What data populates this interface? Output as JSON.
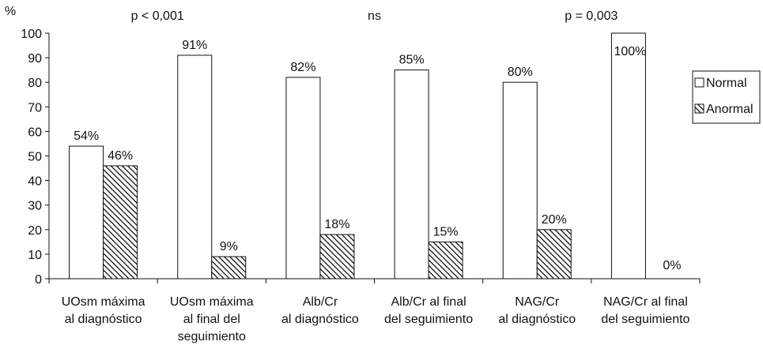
{
  "chart_data": {
    "type": "bar",
    "title": "",
    "xlabel": "",
    "ylabel": "%",
    "ylim": [
      0,
      100
    ],
    "yticks": [
      0,
      10,
      20,
      30,
      40,
      50,
      60,
      70,
      80,
      90,
      100
    ],
    "grid": false,
    "legend_position": "right",
    "categories": [
      [
        "UOsm máxima",
        "al diagnóstico"
      ],
      [
        "UOsm máxima",
        "al final del",
        "seguimiento"
      ],
      [
        "Alb/Cr",
        "al diagnóstico"
      ],
      [
        "Alb/Cr al final",
        "del seguimiento"
      ],
      [
        "NAG/Cr",
        "al diagnóstico"
      ],
      [
        "NAG/Cr al final",
        "del seguimiento"
      ]
    ],
    "series": [
      {
        "name": "Normal",
        "values": [
          54,
          91,
          82,
          85,
          80,
          100
        ],
        "labels": [
          "54%",
          "91%",
          "82%",
          "85%",
          "80%",
          "100%"
        ],
        "fill": "#ffffff",
        "pattern": "none"
      },
      {
        "name": "Anormal",
        "values": [
          46,
          9,
          18,
          15,
          20,
          0
        ],
        "labels": [
          "46%",
          "9%",
          "18%",
          "15%",
          "20%",
          "0%"
        ],
        "fill": "#ffffff",
        "pattern": "diagonal-hatch"
      }
    ],
    "annotations": [
      {
        "text": "p < 0,001",
        "over_categories": [
          0,
          1
        ]
      },
      {
        "text": "ns",
        "over_categories": [
          2,
          3
        ]
      },
      {
        "text": "p = 0,003",
        "over_categories": [
          4,
          5
        ]
      }
    ],
    "colors": {
      "stroke": "#111111",
      "hatch": "#111111"
    }
  }
}
